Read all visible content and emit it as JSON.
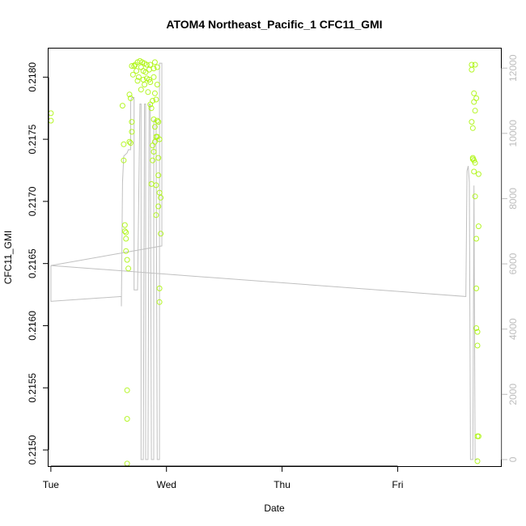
{
  "chart_data": {
    "type": "scatter",
    "title": "ATOM4 Northeast_Pacific_1 CFC11_GMI",
    "xlabel": "Date",
    "ylabel": "CFC11_GMI",
    "x_ticks": [
      "Tue",
      "Wed",
      "Thu",
      "Fri"
    ],
    "y_ticks": [
      "0.2150",
      "0.2155",
      "0.2160",
      "0.2165",
      "0.2170",
      "0.2175",
      "0.2180"
    ],
    "y2_ticks": [
      "0",
      "2000",
      "4000",
      "6000",
      "8000",
      "10000",
      "12000"
    ],
    "xlim": [
      -0.02,
      3.9
    ],
    "ylim": [
      0.21487,
      0.21823
    ],
    "y2lim": [
      -200,
      12600
    ],
    "colors": {
      "points": "#a8f500",
      "line": "#c0c0c0",
      "axis": "#000000",
      "axis_right": "#bdbdbd"
    },
    "series": [
      {
        "type": "scatter",
        "points": [
          [
            0.0,
            0.21771
          ],
          [
            0.0,
            0.21765
          ],
          [
            0.62,
            0.21777
          ],
          [
            0.63,
            0.21746
          ],
          [
            0.63,
            0.21733
          ],
          [
            0.64,
            0.21681
          ],
          [
            0.64,
            0.21676
          ],
          [
            0.65,
            0.21675
          ],
          [
            0.65,
            0.2167
          ],
          [
            0.65,
            0.2166
          ],
          [
            0.66,
            0.21653
          ],
          [
            0.66,
            0.21548
          ],
          [
            0.66,
            0.21525
          ],
          [
            0.66,
            0.21489
          ],
          [
            0.67,
            0.21646
          ],
          [
            0.68,
            0.21748
          ],
          [
            0.68,
            0.21786
          ],
          [
            0.69,
            0.21783
          ],
          [
            0.69,
            0.21747
          ],
          [
            0.7,
            0.21756
          ],
          [
            0.7,
            0.21764
          ],
          [
            0.7,
            0.21809
          ],
          [
            0.71,
            0.21802
          ],
          [
            0.72,
            0.21809
          ],
          [
            0.73,
            0.2181
          ],
          [
            0.74,
            0.21805
          ],
          [
            0.75,
            0.21812
          ],
          [
            0.75,
            0.21797
          ],
          [
            0.76,
            0.218
          ],
          [
            0.77,
            0.21813
          ],
          [
            0.78,
            0.21808
          ],
          [
            0.78,
            0.2179
          ],
          [
            0.79,
            0.21812
          ],
          [
            0.8,
            0.21805
          ],
          [
            0.8,
            0.21798
          ],
          [
            0.81,
            0.21794
          ],
          [
            0.81,
            0.21811
          ],
          [
            0.82,
            0.21804
          ],
          [
            0.83,
            0.2181
          ],
          [
            0.83,
            0.21799
          ],
          [
            0.84,
            0.21788
          ],
          [
            0.85,
            0.21806
          ],
          [
            0.85,
            0.21798
          ],
          [
            0.86,
            0.2181
          ],
          [
            0.86,
            0.21796
          ],
          [
            0.86,
            0.21778
          ],
          [
            0.87,
            0.21775
          ],
          [
            0.87,
            0.21714
          ],
          [
            0.88,
            0.21733
          ],
          [
            0.88,
            0.21745
          ],
          [
            0.88,
            0.21781
          ],
          [
            0.89,
            0.21807
          ],
          [
            0.89,
            0.218
          ],
          [
            0.89,
            0.21766
          ],
          [
            0.89,
            0.2174
          ],
          [
            0.9,
            0.21812
          ],
          [
            0.9,
            0.21787
          ],
          [
            0.9,
            0.2176
          ],
          [
            0.9,
            0.21748
          ],
          [
            0.91,
            0.21782
          ],
          [
            0.91,
            0.21752
          ],
          [
            0.91,
            0.21713
          ],
          [
            0.91,
            0.21689
          ],
          [
            0.92,
            0.21808
          ],
          [
            0.92,
            0.21794
          ],
          [
            0.92,
            0.21765
          ],
          [
            0.92,
            0.21752
          ],
          [
            0.93,
            0.21764
          ],
          [
            0.93,
            0.21735
          ],
          [
            0.93,
            0.21721
          ],
          [
            0.93,
            0.21696
          ],
          [
            0.94,
            0.2175
          ],
          [
            0.94,
            0.21707
          ],
          [
            0.94,
            0.2163
          ],
          [
            0.94,
            0.21619
          ],
          [
            0.95,
            0.21703
          ],
          [
            0.95,
            0.21674
          ],
          [
            3.64,
            0.2181
          ],
          [
            3.64,
            0.21806
          ],
          [
            3.64,
            0.21764
          ],
          [
            3.65,
            0.21759
          ],
          [
            3.65,
            0.21735
          ],
          [
            3.65,
            0.21734
          ],
          [
            3.66,
            0.21787
          ],
          [
            3.66,
            0.2178
          ],
          [
            3.66,
            0.21733
          ],
          [
            3.66,
            0.21724
          ],
          [
            3.67,
            0.2181
          ],
          [
            3.67,
            0.21773
          ],
          [
            3.67,
            0.21704
          ],
          [
            3.67,
            0.21731
          ],
          [
            3.68,
            0.21783
          ],
          [
            3.68,
            0.2167
          ],
          [
            3.68,
            0.2163
          ],
          [
            3.68,
            0.21598
          ],
          [
            3.69,
            0.21595
          ],
          [
            3.69,
            0.21584
          ],
          [
            3.69,
            0.21511
          ],
          [
            3.69,
            0.21491
          ],
          [
            3.7,
            0.21511
          ],
          [
            3.7,
            0.21722
          ],
          [
            3.7,
            0.2168
          ]
        ]
      },
      {
        "type": "line",
        "axis": "right",
        "points": [
          [
            0.0,
            5950
          ],
          [
            0.0,
            4850
          ],
          [
            0.61,
            5000
          ],
          [
            0.61,
            4700
          ],
          [
            0.62,
            8500
          ],
          [
            0.63,
            9300
          ],
          [
            0.66,
            9400
          ],
          [
            0.67,
            9500
          ],
          [
            0.69,
            9500
          ],
          [
            0.69,
            11000
          ],
          [
            0.7,
            11100
          ],
          [
            0.72,
            11100
          ],
          [
            0.72,
            5200
          ],
          [
            0.75,
            5200
          ],
          [
            0.77,
            10900
          ],
          [
            0.78,
            10900
          ],
          [
            0.78,
            0
          ],
          [
            0.8,
            0
          ],
          [
            0.81,
            10900
          ],
          [
            0.82,
            10900
          ],
          [
            0.82,
            0
          ],
          [
            0.84,
            0
          ],
          [
            0.85,
            10900
          ],
          [
            0.86,
            10900
          ],
          [
            0.87,
            0
          ],
          [
            0.89,
            0
          ],
          [
            0.89,
            10400
          ],
          [
            0.91,
            10400
          ],
          [
            0.92,
            0
          ],
          [
            0.94,
            0
          ],
          [
            0.94,
            12150
          ],
          [
            0.96,
            12150
          ],
          [
            0.96,
            6550
          ],
          [
            0.0,
            5950
          ],
          [
            3.59,
            5000
          ],
          [
            3.59,
            5000
          ],
          [
            3.6,
            8850
          ],
          [
            3.61,
            9000
          ],
          [
            3.62,
            8500
          ],
          [
            3.63,
            0
          ],
          [
            3.65,
            0
          ],
          [
            3.66,
            8400
          ],
          [
            3.67,
            0
          ],
          [
            3.69,
            0
          ]
        ]
      }
    ]
  }
}
